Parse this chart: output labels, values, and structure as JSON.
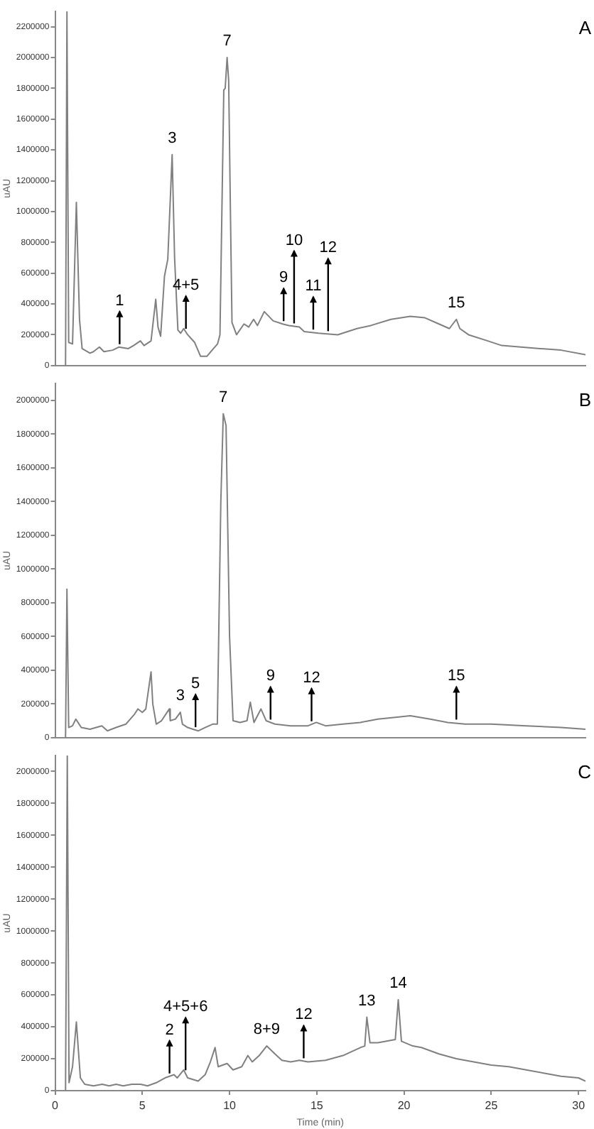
{
  "chart_data": [
    {
      "type": "line",
      "title": "A",
      "ylabel": "uAU",
      "tick_labels": "y",
      "xlim": [
        0,
        30.4
      ],
      "ylim": [
        0,
        2300000
      ],
      "yticks": [
        0,
        200000,
        400000,
        600000,
        800000,
        1000000,
        1200000,
        1400000,
        1600000,
        1800000,
        2000000,
        2200000
      ],
      "series": [
        {
          "color": "#808080",
          "x": [
            0.6,
            0.68,
            0.78,
            1.0,
            1.22,
            1.4,
            1.55,
            2.0,
            2.2,
            2.54,
            2.8,
            3.3,
            3.65,
            4.2,
            4.5,
            4.89,
            5.1,
            5.5,
            5.77,
            5.9,
            6.05,
            6.27,
            6.46,
            6.71,
            6.85,
            7.04,
            7.2,
            7.37,
            7.6,
            8.0,
            8.34,
            8.7,
            9.0,
            9.31,
            9.45,
            9.67,
            9.75,
            9.86,
            9.95,
            10.05,
            10.14,
            10.4,
            10.83,
            11.1,
            11.38,
            11.6,
            11.99,
            12.5,
            13.04,
            13.4,
            14.0,
            14.28,
            15.1,
            16.2,
            17.3,
            18.1,
            19.25,
            20.36,
            21.2,
            22.0,
            22.6,
            23.0,
            23.2,
            23.7,
            24.8,
            25.6,
            26.7,
            27.8,
            29.0,
            30.4
          ],
          "values": [
            0,
            2300000,
            150000,
            140000,
            1060000,
            300000,
            110000,
            80000,
            90000,
            120000,
            90000,
            100000,
            120000,
            110000,
            130000,
            160000,
            130000,
            160000,
            430000,
            250000,
            190000,
            580000,
            690000,
            1370000,
            700000,
            230000,
            210000,
            240000,
            200000,
            150000,
            60000,
            60000,
            100000,
            140000,
            200000,
            1790000,
            1800000,
            2000000,
            1850000,
            1000000,
            280000,
            200000,
            270000,
            250000,
            300000,
            260000,
            350000,
            290000,
            270000,
            260000,
            250000,
            220000,
            210000,
            200000,
            240000,
            260000,
            300000,
            320000,
            310000,
            270000,
            240000,
            300000,
            240000,
            200000,
            160000,
            130000,
            120000,
            110000,
            100000,
            70000
          ]
        }
      ],
      "annotations": [
        {
          "text": "1",
          "x": 3.7,
          "y": 120000
        },
        {
          "text": "3",
          "x": 6.71,
          "y": 1370000
        },
        {
          "text": "4+5",
          "x": 7.5,
          "y": 220000
        },
        {
          "text": "7",
          "x": 9.86,
          "y": 2000000
        },
        {
          "text": "9",
          "x": 13.1,
          "y": 270000
        },
        {
          "text": "10",
          "x": 13.7,
          "y": 255000
        },
        {
          "text": "11",
          "x": 14.8,
          "y": 215000
        },
        {
          "text": "12",
          "x": 15.65,
          "y": 205000
        },
        {
          "text": "15",
          "x": 23.0,
          "y": 300000
        }
      ]
    },
    {
      "type": "line",
      "title": "B",
      "ylabel": "uAU",
      "tick_labels": "y",
      "xlim": [
        0,
        30.4
      ],
      "ylim": [
        0,
        2100000
      ],
      "yticks": [
        0,
        200000,
        400000,
        600000,
        800000,
        1000000,
        1200000,
        1400000,
        1600000,
        1800000,
        2000000
      ],
      "series": [
        {
          "color": "#808080",
          "x": [
            0.6,
            0.68,
            0.78,
            1.0,
            1.19,
            1.5,
            2.0,
            2.68,
            3.0,
            3.5,
            4.06,
            4.56,
            4.75,
            5.0,
            5.2,
            5.5,
            5.6,
            5.8,
            6.1,
            6.55,
            6.6,
            6.9,
            7.18,
            7.3,
            7.6,
            7.9,
            8.2,
            8.6,
            9.03,
            9.3,
            9.5,
            9.64,
            9.8,
            10.0,
            10.2,
            10.6,
            11.0,
            11.19,
            11.4,
            11.8,
            12.1,
            12.6,
            13.5,
            14.5,
            14.97,
            15.5,
            16.5,
            17.5,
            18.5,
            19.5,
            20.36,
            21.5,
            22.5,
            23.5,
            25.0,
            27.0,
            29.0,
            30.4
          ],
          "values": [
            0,
            880000,
            60000,
            70000,
            110000,
            60000,
            50000,
            70000,
            40000,
            60000,
            80000,
            140000,
            170000,
            150000,
            170000,
            390000,
            200000,
            80000,
            100000,
            170000,
            100000,
            110000,
            150000,
            80000,
            60000,
            50000,
            40000,
            60000,
            80000,
            80000,
            1400000,
            1920000,
            1850000,
            600000,
            100000,
            90000,
            100000,
            210000,
            90000,
            170000,
            100000,
            80000,
            70000,
            70000,
            90000,
            70000,
            80000,
            90000,
            110000,
            120000,
            130000,
            110000,
            90000,
            80000,
            80000,
            70000,
            60000,
            50000
          ]
        }
      ],
      "annotations": [
        {
          "text": "3",
          "x": 7.18,
          "y": 150000
        },
        {
          "text": "5",
          "x": 8.05,
          "y": 45000
        },
        {
          "text": "7",
          "x": 9.64,
          "y": 1920000
        },
        {
          "text": "9",
          "x": 12.35,
          "y": 90000
        },
        {
          "text": "12",
          "x": 14.7,
          "y": 80000
        },
        {
          "text": "15",
          "x": 23.0,
          "y": 90000
        }
      ]
    },
    {
      "type": "line",
      "title": "C",
      "ylabel": "uAU",
      "xlabel": "Time (min)",
      "xlim": [
        0,
        30.4
      ],
      "xticks": [
        0,
        5,
        10,
        15,
        20,
        25,
        30
      ],
      "ylim": [
        0,
        2100000
      ],
      "yticks": [
        0,
        200000,
        400000,
        600000,
        800000,
        1000000,
        1200000,
        1400000,
        1600000,
        1800000,
        2000000
      ],
      "series": [
        {
          "color": "#808080",
          "x": [
            0.6,
            0.7,
            0.8,
            1.0,
            1.22,
            1.45,
            1.7,
            2.2,
            2.7,
            3.1,
            3.5,
            3.9,
            4.4,
            4.9,
            5.3,
            5.8,
            6.3,
            6.82,
            7.0,
            7.37,
            7.6,
            8.2,
            8.6,
            8.9,
            9.17,
            9.35,
            9.6,
            9.86,
            10.2,
            10.7,
            11.05,
            11.3,
            11.7,
            12.13,
            12.6,
            13.0,
            13.5,
            14.0,
            14.5,
            15.5,
            16.5,
            17.5,
            17.75,
            17.87,
            18.05,
            18.5,
            19.0,
            19.5,
            19.67,
            19.85,
            20.5,
            21.0,
            22.0,
            23.0,
            24.0,
            25.0,
            26.0,
            27.0,
            28.0,
            29.0,
            30.0,
            30.4
          ],
          "values": [
            0,
            2100000,
            50000,
            150000,
            430000,
            80000,
            40000,
            30000,
            40000,
            30000,
            40000,
            30000,
            40000,
            40000,
            30000,
            50000,
            80000,
            100000,
            80000,
            130000,
            80000,
            60000,
            100000,
            180000,
            270000,
            150000,
            160000,
            170000,
            130000,
            150000,
            220000,
            180000,
            220000,
            280000,
            230000,
            190000,
            180000,
            190000,
            180000,
            190000,
            220000,
            270000,
            280000,
            460000,
            300000,
            300000,
            310000,
            320000,
            570000,
            310000,
            280000,
            270000,
            230000,
            200000,
            180000,
            160000,
            150000,
            130000,
            110000,
            90000,
            80000,
            60000
          ]
        }
      ],
      "annotations": [
        {
          "text": "2",
          "x": 6.56,
          "y": 90000
        },
        {
          "text": "4+5+6",
          "x": 7.48,
          "y": 110000
        },
        {
          "text": "8+9",
          "x": 12.13,
          "y": 280000
        },
        {
          "text": "12",
          "x": 14.25,
          "y": 185000
        },
        {
          "text": "13",
          "x": 17.87,
          "y": 460000
        },
        {
          "text": "14",
          "x": 19.67,
          "y": 570000
        }
      ]
    }
  ]
}
